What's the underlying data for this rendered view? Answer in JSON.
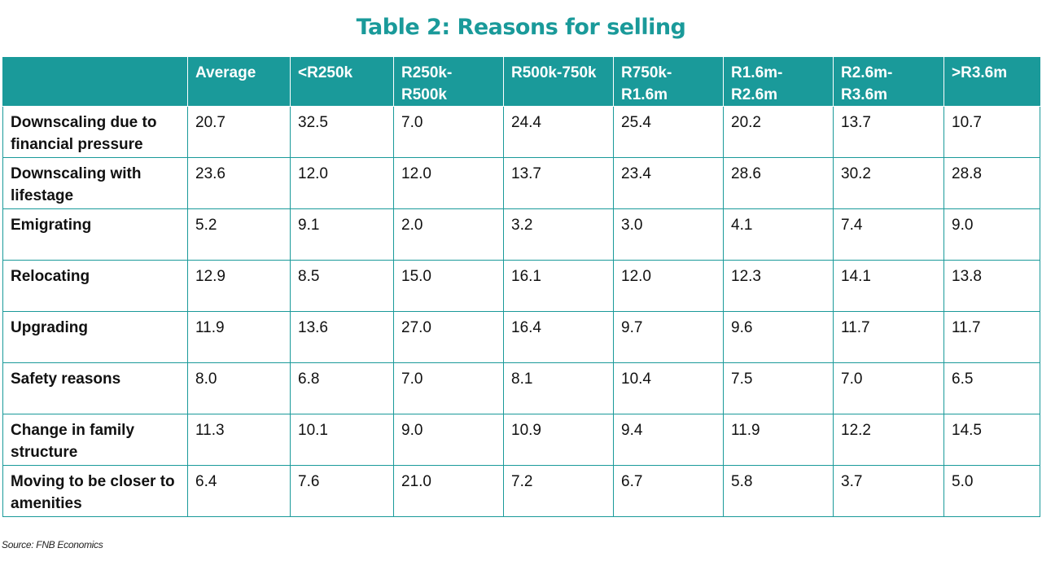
{
  "title": "Table 2: Reasons for selling",
  "colors": {
    "accent": "#1a9a9a",
    "title": "#1a9a9a"
  },
  "table": {
    "headers": [
      "",
      "Average",
      "<R250k",
      "R250k-R500k",
      "R500k-750k",
      "R750k-R1.6m",
      "R1.6m-R2.6m",
      "R2.6m-R3.6m",
      ">R3.6m"
    ],
    "rows": [
      [
        "Downscaling due to financial pressure",
        "20.7",
        "32.5",
        "7.0",
        "24.4",
        "25.4",
        "20.2",
        "13.7",
        "10.7"
      ],
      [
        "Downscaling with lifestage",
        "23.6",
        "12.0",
        "12.0",
        "13.7",
        "23.4",
        "28.6",
        "30.2",
        "28.8"
      ],
      [
        "Emigrating",
        "5.2",
        "9.1",
        "2.0",
        "3.2",
        "3.0",
        "4.1",
        "7.4",
        "9.0"
      ],
      [
        "Relocating",
        "12.9",
        "8.5",
        "15.0",
        "16.1",
        "12.0",
        "12.3",
        "14.1",
        "13.8"
      ],
      [
        "Upgrading",
        "11.9",
        "13.6",
        "27.0",
        "16.4",
        "9.7",
        "9.6",
        "11.7",
        "11.7"
      ],
      [
        "Safety reasons",
        "8.0",
        "6.8",
        "7.0",
        "8.1",
        "10.4",
        "7.5",
        "7.0",
        "6.5"
      ],
      [
        "Change in family structure",
        "11.3",
        "10.1",
        "9.0",
        "10.9",
        "9.4",
        "11.9",
        "12.2",
        "14.5"
      ],
      [
        "Moving to be closer to amenities",
        "6.4",
        "7.6",
        "21.0",
        "7.2",
        "6.7",
        "5.8",
        "3.7",
        "5.0"
      ]
    ]
  },
  "source": "Source: FNB Economics"
}
